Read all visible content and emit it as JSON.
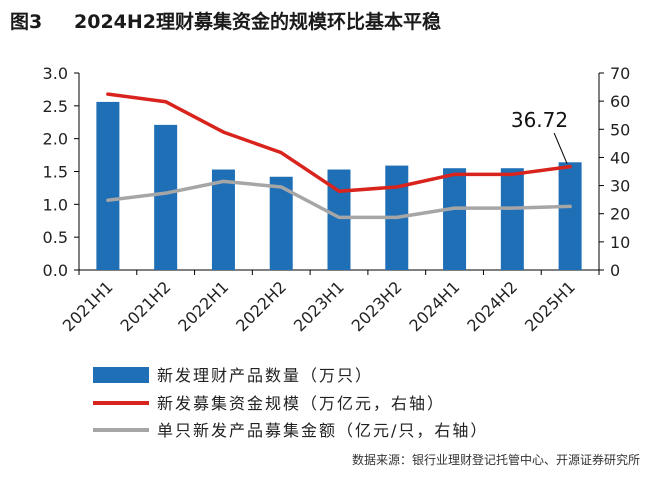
{
  "figure": {
    "number": "图3",
    "title": "2024H2理财募集资金的规模环比基本平稳",
    "source": "数据来源：银行业理财登记托管中心、开源证券研究所"
  },
  "chart_data": {
    "type": "bar+line",
    "categories": [
      "2021H1",
      "2021H2",
      "2022H1",
      "2022H2",
      "2023H1",
      "2023H2",
      "2024H1",
      "2024H2",
      "2025H1"
    ],
    "left_axis": {
      "ticks": [
        "0.0",
        "0.5",
        "1.0",
        "1.5",
        "2.0",
        "2.5",
        "3.0"
      ],
      "range": [
        0,
        3.0
      ]
    },
    "right_axis": {
      "ticks": [
        "0",
        "10",
        "20",
        "30",
        "40",
        "50",
        "60",
        "70"
      ],
      "range": [
        0,
        70
      ]
    },
    "series": [
      {
        "name": "新发理财产品数量（万只）",
        "type": "bar",
        "axis": "left",
        "color": "#1f6fb6",
        "values": [
          2.56,
          2.21,
          1.53,
          1.42,
          1.53,
          1.59,
          1.55,
          1.55,
          1.64
        ]
      },
      {
        "name": "新发募集资金规模（万亿元，右轴）",
        "type": "line",
        "axis": "right",
        "color": "#d9231d",
        "values": [
          62.5,
          59.8,
          49.0,
          41.7,
          28.0,
          29.5,
          34.0,
          34.0,
          36.72
        ]
      },
      {
        "name": "单只新发产品募集金额（亿元/只，右轴）",
        "type": "line",
        "axis": "right",
        "color": "#a6a6a6",
        "values": [
          24.8,
          27.3,
          31.5,
          29.5,
          18.7,
          18.7,
          22.0,
          22.0,
          22.6
        ]
      }
    ],
    "annotation": {
      "text": "36.72",
      "category": "2025H1"
    },
    "grid": false,
    "legend": "bottom"
  }
}
